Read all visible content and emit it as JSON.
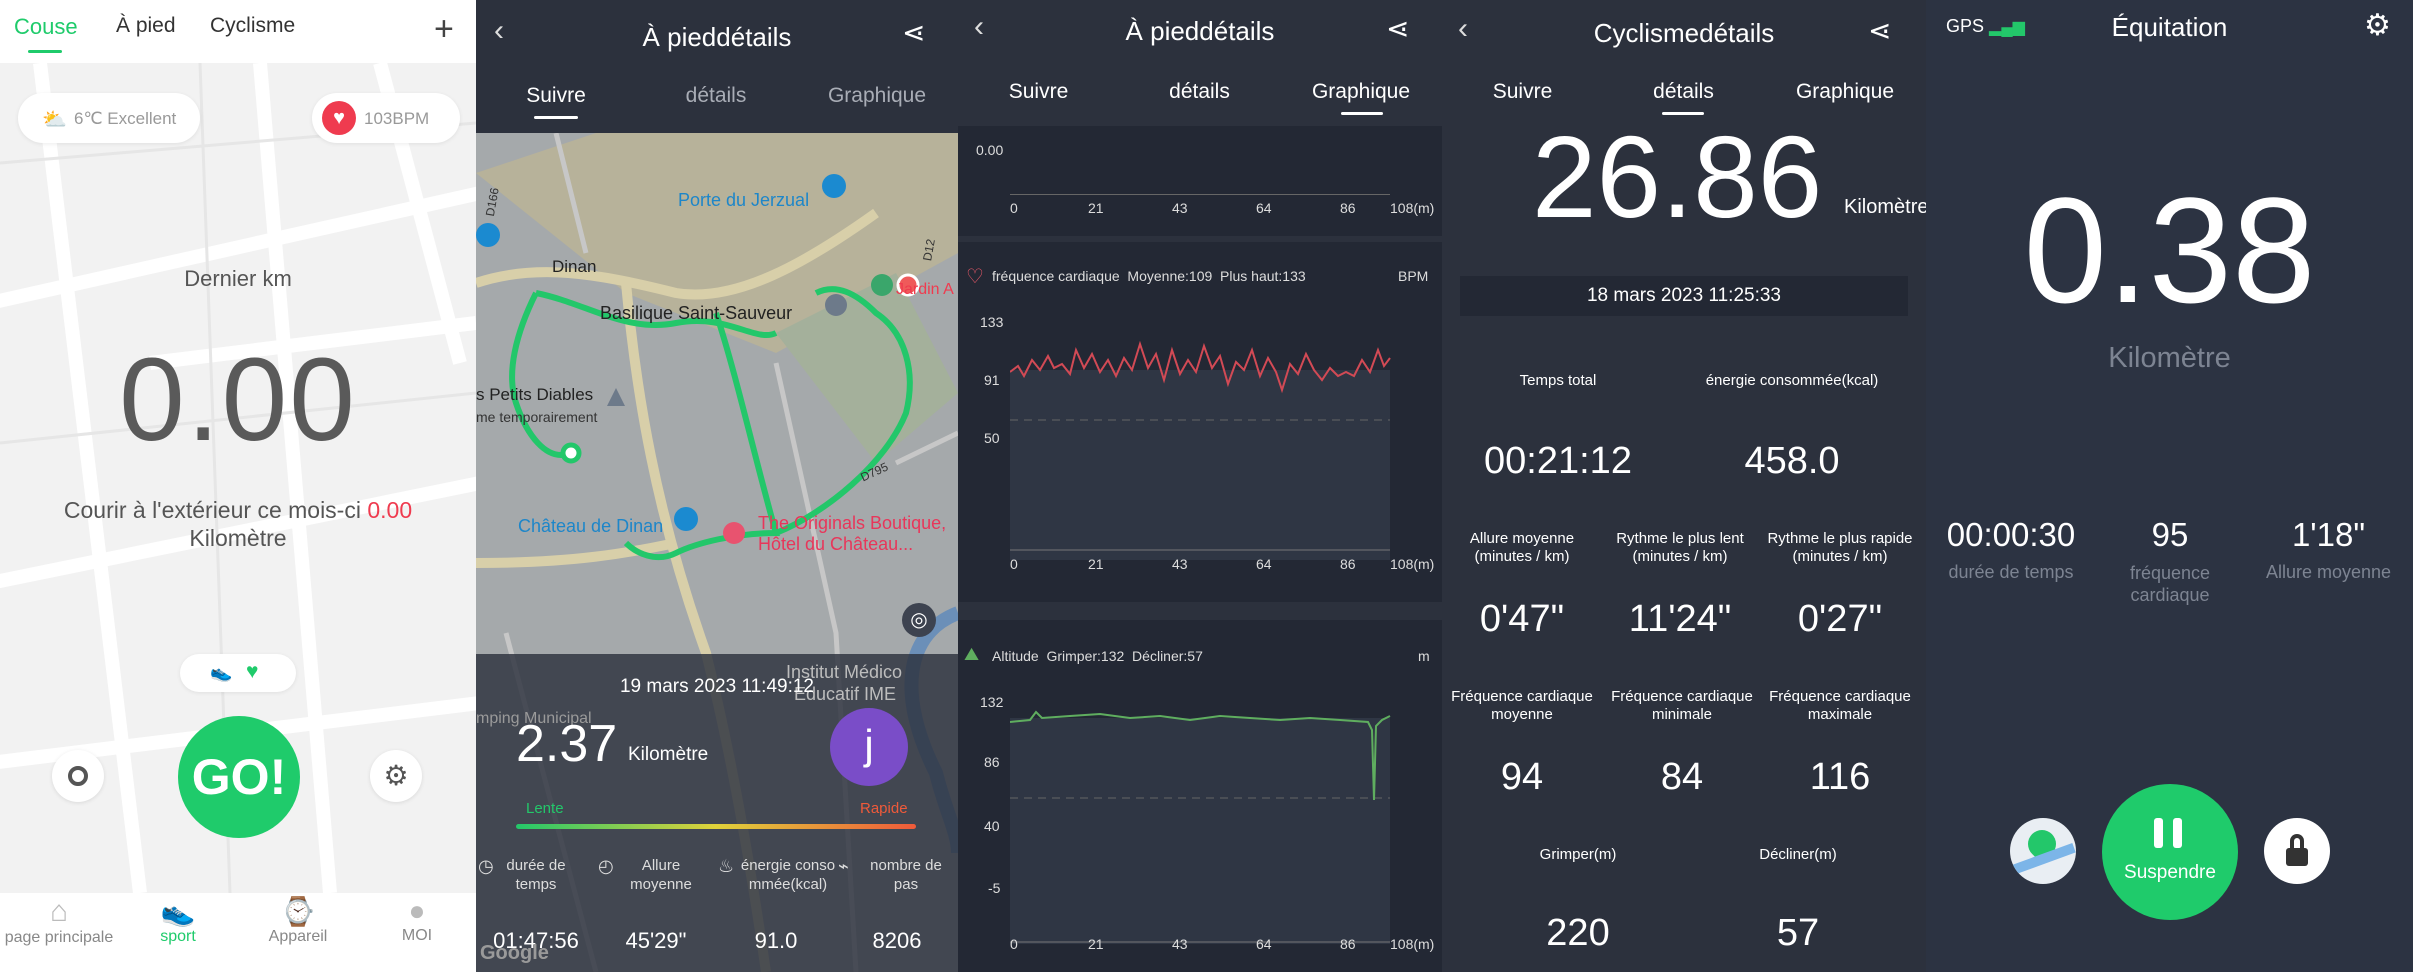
{
  "screen1": {
    "tabs": [
      "Couse",
      "À pied",
      "Cyclisme"
    ],
    "weather": "6℃ Excellent",
    "heart": "103BPM",
    "last_km_label": "Dernier km",
    "distance": "0.00",
    "month_text": "Courir à l'extérieur ce mois-ci",
    "month_value": "0.00",
    "month_unit": "Kilomètre",
    "go_label": "GO!",
    "nav": [
      "page principale",
      "sport",
      "Appareil",
      "MOI"
    ],
    "colors": {
      "accent": "#1fcb6b",
      "red": "#ef3b4f"
    }
  },
  "screen2": {
    "title": "À pieddétails",
    "tabs": [
      "Suivre",
      "détails",
      "Graphique"
    ],
    "map_labels": {
      "porte": "Porte du Jerzual",
      "dinan": "Dinan",
      "basilique": "Basilique Saint-Sauveur",
      "petits": "s Petits Diables",
      "temp": "me temporairement",
      "chateau": "Château de Dinan",
      "boutique1": "The Originals Boutique,",
      "boutique2": "Hôtel du Château...",
      "jardin": "Jardin A",
      "institut": "Institut Médico",
      "educatif": "Educatif IME",
      "camping": "mping Municipal",
      "road_d95": "D795",
      "road_d12": "D12",
      "road_d166": "D166"
    },
    "date": "19 mars 2023 11:49:12",
    "distance": "2.37",
    "distance_unit": "Kilomètre",
    "avatar": "j",
    "lente": "Lente",
    "rapide": "Rapide",
    "stats": [
      {
        "label": "durée de temps",
        "value": "01:47:56"
      },
      {
        "label": "Allure moyenne",
        "value": "45'29\""
      },
      {
        "label": "énergie conso mmée(kcal)",
        "value": "91.0"
      },
      {
        "label": "nombre de pas",
        "value": "8206"
      }
    ],
    "google": "Google"
  },
  "screen3": {
    "title": "À pieddétails",
    "tabs": [
      "Suivre",
      "détails",
      "Graphique"
    ],
    "top_y_label": "0.00",
    "xticks": [
      "0",
      "21",
      "43",
      "64",
      "86",
      "108(m)"
    ],
    "hr_header": "fréquence cardiaque  Moyenne:109  Plus haut:133",
    "hr_unit": "BPM",
    "hr_yticks": [
      "133",
      "91",
      "50"
    ],
    "alt_header": "Altitude  Grimper:132  Décliner:57",
    "alt_unit": "m",
    "alt_yticks": [
      "132",
      "86",
      "40",
      "-5"
    ]
  },
  "screen4": {
    "title": "Cyclismedétails",
    "tabs": [
      "Suivre",
      "détails",
      "Graphique"
    ],
    "distance": "26.86",
    "distance_unit": "Kilomètre",
    "date": "18 mars 2023 11:25:33",
    "total_time_label": "Temps total",
    "energy_label": "énergie consommée(kcal)",
    "total_time": "00:21:12",
    "energy": "458.0",
    "pace_labels": [
      "Allure moyenne (minutes / km)",
      "Rythme le plus lent (minutes / km)",
      "Rythme le plus rapide (minutes / km)"
    ],
    "pace_values": [
      "0'47\"",
      "11'24\"",
      "0'27\""
    ],
    "hr_labels": [
      "Fréquence cardiaque moyenne",
      "Fréquence cardiaque minimale",
      "Fréquence cardiaque maximale"
    ],
    "hr_values": [
      "94",
      "84",
      "116"
    ],
    "climb_label": "Grimper(m)",
    "descend_label": "Décliner(m)",
    "climb": "220",
    "descend": "57"
  },
  "screen5": {
    "gps": "GPS",
    "title": "Équitation",
    "distance": "0.38",
    "unit": "Kilomètre",
    "stats": [
      {
        "value": "00:00:30",
        "label": "durée de temps"
      },
      {
        "value": "95",
        "label": "fréquence cardiaque"
      },
      {
        "value": "1'18\"",
        "label": "Allure moyenne"
      }
    ],
    "pause_label": "Suspendre"
  }
}
